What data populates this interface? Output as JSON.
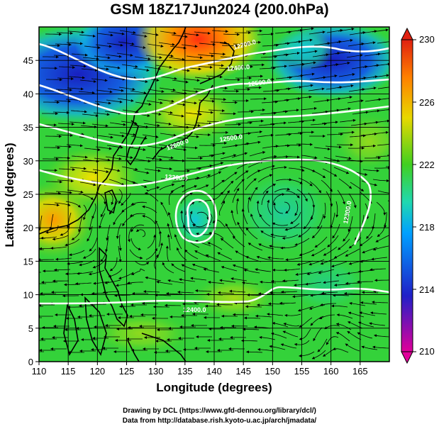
{
  "title": "GSM 18Z17Jun2024 (200.0hPa)",
  "xlabel": "Longitude (degrees)",
  "ylabel": "Latitude  (degrees)",
  "x_ticks": [
    "110",
    "115",
    "120",
    "125",
    "130",
    "135",
    "140",
    "145",
    "150",
    "155",
    "160",
    "165"
  ],
  "y_ticks": [
    "0",
    "5",
    "10",
    "15",
    "20",
    "25",
    "30",
    "35",
    "40",
    "45"
  ],
  "colorbar": {
    "ticks": [
      "210",
      "214",
      "218",
      "222",
      "226",
      "230"
    ],
    "min": 210,
    "max": 230
  },
  "contour_labels": [
    "12600.0",
    "12500.0",
    "12400.0",
    "12300.0",
    "12200.0",
    "12300.0",
    "12400.0",
    "12500.0"
  ],
  "credits": [
    "Drawing by DCL (https://www.gfd-dennou.org/library/dcl/)",
    "Data from http://database.rish.kyoto-u.ac.jp/arch/jmadata/"
  ],
  "chart_data": {
    "type": "heatmap",
    "title": "GSM 18Z17Jun2024 (200.0hPa)",
    "xlabel": "Longitude (degrees)",
    "ylabel": "Latitude  (degrees)",
    "xlim": [
      110,
      170
    ],
    "ylim": [
      0,
      50
    ],
    "colorscale": {
      "range": [
        210,
        230
      ],
      "ticks": [
        210,
        214,
        218,
        222,
        226,
        230
      ],
      "colors": [
        "#e0009a",
        "#2020c8",
        "#00a0ff",
        "#20d8b0",
        "#40d020",
        "#f0d000",
        "#ff8000",
        "#e02010"
      ]
    },
    "field_samples": [
      {
        "lon": 112,
        "lat": 45,
        "value": 214
      },
      {
        "lon": 120,
        "lat": 45,
        "value": 214
      },
      {
        "lon": 127,
        "lat": 47,
        "value": 216
      },
      {
        "lon": 137,
        "lat": 48,
        "value": 229
      },
      {
        "lon": 145,
        "lat": 46,
        "value": 223
      },
      {
        "lon": 157,
        "lat": 46,
        "value": 215
      },
      {
        "lon": 165,
        "lat": 45,
        "value": 218
      },
      {
        "lon": 115,
        "lat": 35,
        "value": 221
      },
      {
        "lon": 130,
        "lat": 38,
        "value": 224
      },
      {
        "lon": 145,
        "lat": 38,
        "value": 222
      },
      {
        "lon": 160,
        "lat": 38,
        "value": 221
      },
      {
        "lon": 112,
        "lat": 22,
        "value": 225
      },
      {
        "lon": 120,
        "lat": 25,
        "value": 222
      },
      {
        "lon": 136,
        "lat": 24,
        "value": 218
      },
      {
        "lon": 152,
        "lat": 24,
        "value": 219
      },
      {
        "lon": 160,
        "lat": 20,
        "value": 220
      },
      {
        "lon": 120,
        "lat": 10,
        "value": 222
      },
      {
        "lon": 140,
        "lat": 10,
        "value": 222
      },
      {
        "lon": 155,
        "lat": 6,
        "value": 220
      },
      {
        "lon": 165,
        "lat": 5,
        "value": 221
      }
    ],
    "geopotential_contours": [
      {
        "label": "12600.0",
        "lon": 152,
        "lat": 24
      },
      {
        "label": "12500.0",
        "lon": 152,
        "lat": 9
      },
      {
        "label": "12400.0",
        "lon": 125,
        "lat": 28
      },
      {
        "label": "12300.0",
        "lon": 130,
        "lat": 35
      },
      {
        "label": "12200.0",
        "lon": 150,
        "lat": 42
      }
    ]
  }
}
